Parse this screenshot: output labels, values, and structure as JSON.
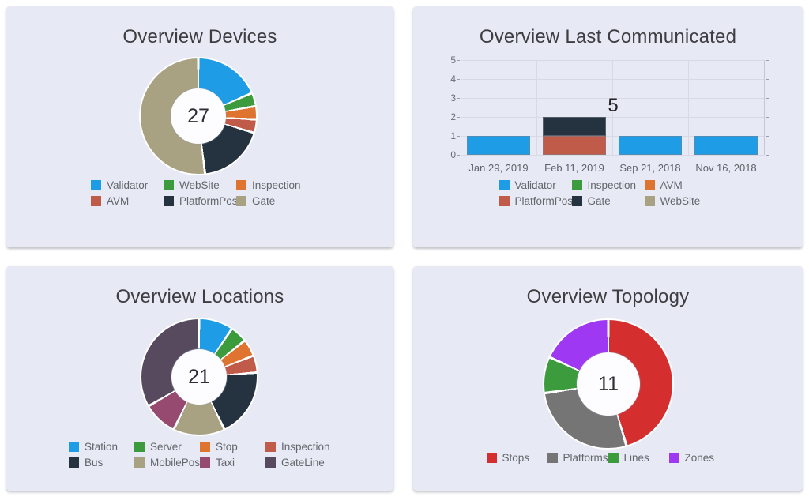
{
  "panels": {
    "devices": {
      "title": "Overview Devices",
      "center_total": "27"
    },
    "last_communicated": {
      "title": "Overview Last Communicated"
    },
    "locations": {
      "title": "Overview Locations",
      "center_total": "21"
    },
    "topology": {
      "title": "Overview Topology",
      "center_total": "11"
    }
  },
  "chart_data": [
    {
      "id": "devices",
      "type": "pie",
      "donut": true,
      "title": "Overview Devices",
      "center_label": "27",
      "labels": [
        "Validator",
        "WebSite",
        "Inspection",
        "AVM",
        "PlatformPos",
        "Gate"
      ],
      "values": [
        5,
        1,
        1,
        1,
        5,
        14
      ],
      "colors": [
        "#1e9ce6",
        "#3c9c3d",
        "#de7430",
        "#c05b49",
        "#24333f",
        "#a8a283"
      ],
      "legend_position": "bottom"
    },
    {
      "id": "last_communicated",
      "type": "bar",
      "stacked": true,
      "title": "Overview Last Communicated",
      "categories": [
        "Jan 29, 2019",
        "Feb 11, 2019",
        "Sep 21, 2018",
        "Nov 16, 2018"
      ],
      "series": [
        {
          "name": "Validator",
          "color": "#1e9ce6",
          "values": [
            1,
            0,
            1,
            1
          ]
        },
        {
          "name": "PlatformPos",
          "color": "#c05b49",
          "values": [
            0,
            1,
            0,
            0
          ]
        },
        {
          "name": "Gate",
          "color": "#24333f",
          "values": [
            0,
            1,
            0,
            0
          ]
        }
      ],
      "legend": [
        {
          "label": "Validator",
          "color": "#1e9ce6"
        },
        {
          "label": "Inspection",
          "color": "#3c9c3d"
        },
        {
          "label": "AVM",
          "color": "#de7430"
        },
        {
          "label": "PlatformPos",
          "color": "#c05b49"
        },
        {
          "label": "Gate",
          "color": "#24333f"
        },
        {
          "label": "WebSite",
          "color": "#a8a283"
        }
      ],
      "ylim": [
        0,
        5
      ],
      "yticks": [
        0,
        1,
        2,
        3,
        4,
        5
      ],
      "grid": true,
      "annotation": {
        "text": "5",
        "category_index": 1,
        "y": 2
      },
      "legend_position": "bottom"
    },
    {
      "id": "locations",
      "type": "pie",
      "donut": true,
      "title": "Overview Locations",
      "center_label": "21",
      "labels": [
        "Station",
        "Server",
        "Stop",
        "Inspection",
        "Bus",
        "MobilePos",
        "Taxi",
        "GateLine"
      ],
      "values": [
        2,
        1,
        1,
        1,
        4,
        3,
        2,
        7
      ],
      "colors": [
        "#1e9ce6",
        "#3c9c3d",
        "#de7430",
        "#c05b49",
        "#24333f",
        "#a8a283",
        "#964a70",
        "#574a5e"
      ],
      "legend_position": "bottom"
    },
    {
      "id": "topology",
      "type": "pie",
      "donut": true,
      "title": "Overview Topology",
      "center_label": "11",
      "labels": [
        "Stops",
        "Platforms",
        "Lines",
        "Zones"
      ],
      "values": [
        5,
        3,
        1,
        2
      ],
      "colors": [
        "#d42e2e",
        "#757575",
        "#3c9c3d",
        "#9e38f2"
      ],
      "legend_position": "bottom"
    }
  ],
  "style_colors": {
    "panel_background": "#e7e9f4",
    "title_text": "#3e3e42",
    "legend_text": "#63666b",
    "axis_text": "#6b6e73"
  }
}
